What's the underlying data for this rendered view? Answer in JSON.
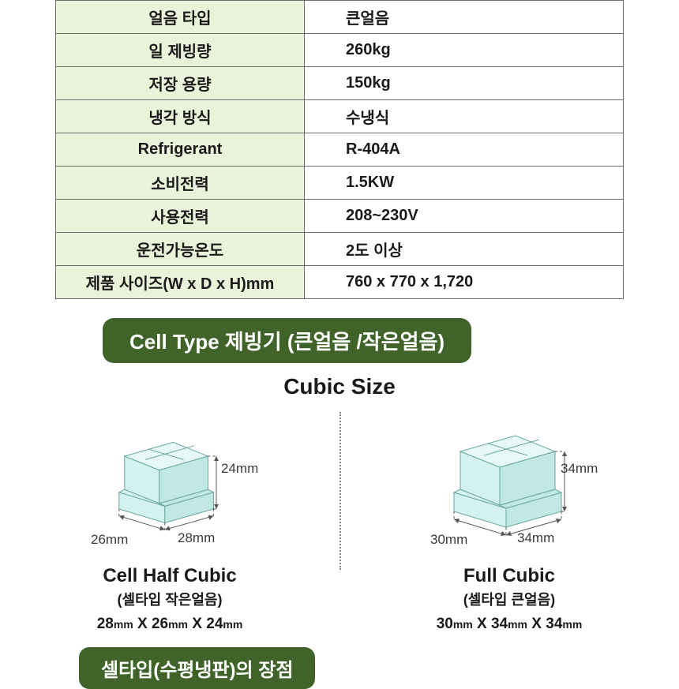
{
  "table": {
    "rows": [
      {
        "label": "얼음 타입",
        "value": "큰얼음"
      },
      {
        "label": "일 제빙량",
        "value": "260kg"
      },
      {
        "label": "저장 용량",
        "value": "150kg"
      },
      {
        "label": "냉각 방식",
        "value": "수냉식"
      },
      {
        "label": "Refrigerant",
        "value": "R-404A"
      },
      {
        "label": "소비전력",
        "value": "1.5KW"
      },
      {
        "label": "사용전력",
        "value": "208~230V"
      },
      {
        "label": "운전가능온도",
        "value": "2도 이상"
      },
      {
        "label": "제품 사이즈(W x D x H)mm",
        "value": "760 x  770  x  1,720"
      }
    ],
    "label_bg": "#eaf3d9",
    "border_color": "#6a6a6a"
  },
  "banner1": "Cell Type 제빙기 (큰얼음 /작은얼음)",
  "section_title": "Cubic Size",
  "cubes": {
    "left": {
      "name": "Cell Half Cubic",
      "sub": "(셀타입 작은얼음)",
      "dims_html": "28|mm| X 26|mm| X 24|mm|",
      "w_label": "28mm",
      "d_label": "26mm",
      "h_label": "24mm",
      "fill": "#d3f1ee",
      "stroke": "#6aa6a0",
      "scale": 0.88
    },
    "right": {
      "name": "Full  Cubic",
      "sub": "(셀타입 큰얼음)",
      "dims_html": "30|mm| X 34|mm| X 34|mm|",
      "w_label": "34mm",
      "d_label": "30mm",
      "h_label": "34mm",
      "fill": "#d3f1ee",
      "stroke": "#6aa6a0",
      "scale": 1.0
    }
  },
  "banner2": "셀타입(수평냉판)의 장점",
  "colors": {
    "banner_bg": "#3f6328",
    "banner_fg": "#ffffff",
    "text": "#1a1a1a"
  }
}
